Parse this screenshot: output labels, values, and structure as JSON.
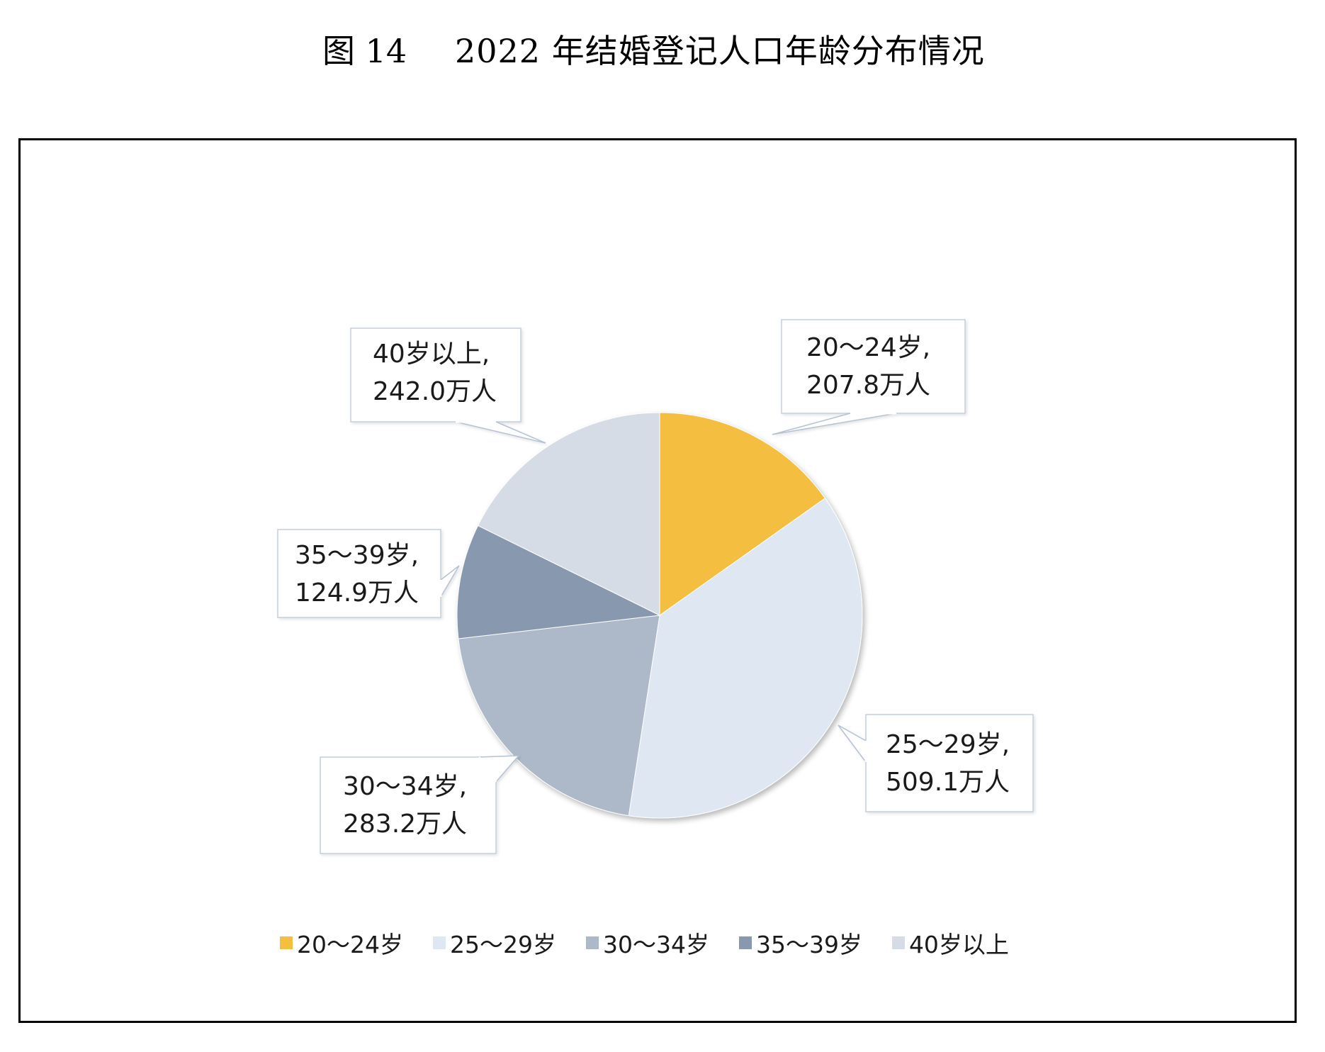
{
  "figure": {
    "number_label": "图 14",
    "title": "2022 年结婚登记人口年龄分布情况"
  },
  "chart_data": {
    "type": "pie",
    "title": "2022 年结婚登记人口年龄分布情况",
    "figure_label": "图 14",
    "unit": "万人",
    "start_angle_deg": 0,
    "direction": "clockwise",
    "categories": [
      "20～24岁",
      "25～29岁",
      "30～34岁",
      "35～39岁",
      "40岁以上"
    ],
    "values": [
      207.8,
      509.1,
      283.2,
      124.9,
      242.0
    ],
    "colors": [
      "#F4BF3F",
      "#DFE7F3",
      "#ADB8C9",
      "#8898AF",
      "#D5DCE6"
    ],
    "data_labels": [
      {
        "line1": "20～24岁,",
        "line2": "207.8万人"
      },
      {
        "line1": "25～29岁,",
        "line2": "509.1万人"
      },
      {
        "line1": "30～34岁,",
        "line2": "283.2万人"
      },
      {
        "line1": "35～39岁,",
        "line2": "124.9万人"
      },
      {
        "line1": "40岁以上,",
        "line2": "242.0万人"
      }
    ],
    "legend": {
      "position": "bottom",
      "entries": [
        "20～24岁",
        "25～29岁",
        "30～34岁",
        "35～39岁",
        "40岁以上"
      ]
    }
  }
}
